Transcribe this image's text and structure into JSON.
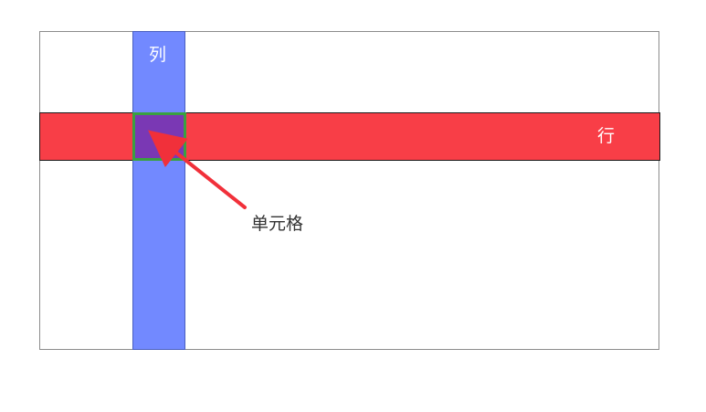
{
  "labels": {
    "column": "列",
    "row": "行",
    "cell": "单元格"
  },
  "colors": {
    "column_fill": "#7289ff",
    "row_fill": "#f83e47",
    "cell_fill": "#7a38b4",
    "cell_border": "#3aa040",
    "arrow": "#f1303a"
  }
}
